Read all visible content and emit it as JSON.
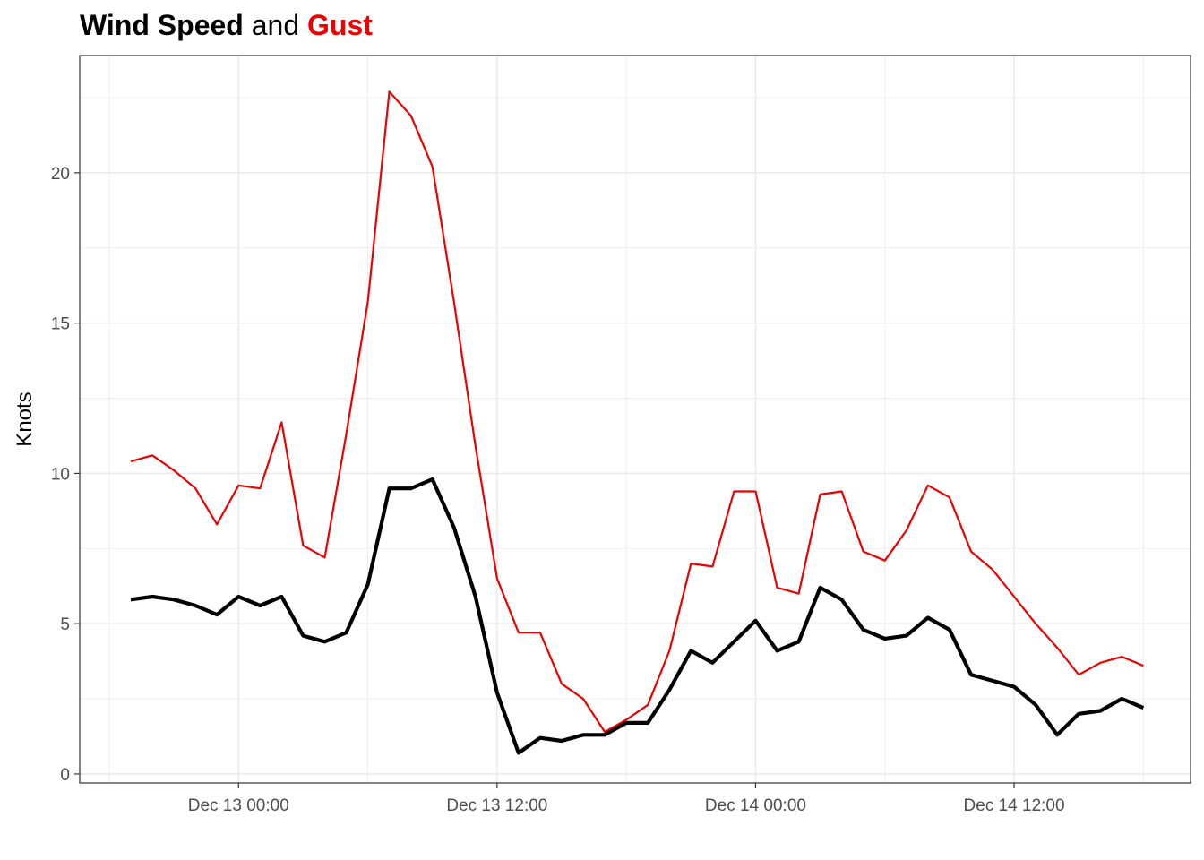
{
  "title": {
    "part1": "Wind Speed",
    "part2": " and ",
    "part3": "Gust",
    "part3_color": "#ee0000"
  },
  "chart_data": {
    "type": "line",
    "title": "Wind Speed and Gust",
    "xlabel": "",
    "ylabel": "Knots",
    "x_start": "2024-12-12 19:00",
    "x_step_hours": 1,
    "x_tick_labels": [
      "Dec 13 00:00",
      "Dec 13 12:00",
      "Dec 14 00:00",
      "Dec 14 12:00"
    ],
    "y_ticks": [
      0,
      5,
      10,
      15,
      20
    ],
    "ylim": [
      -0.3,
      23.9
    ],
    "grid": true,
    "legend": "none",
    "series": [
      {
        "name": "Gust",
        "color": "#ee0000",
        "values": [
          10.4,
          10.6,
          10.1,
          9.5,
          8.3,
          9.6,
          9.5,
          11.7,
          7.6,
          7.2,
          11.3,
          15.7,
          22.7,
          21.9,
          20.2,
          15.7,
          10.9,
          6.5,
          4.7,
          4.7,
          3.0,
          2.5,
          1.4,
          1.8,
          2.3,
          4.1,
          7.0,
          6.9,
          9.4,
          9.4,
          6.2,
          6.0,
          9.3,
          9.4,
          7.4,
          7.1,
          8.1,
          9.6,
          9.2,
          7.4,
          6.8,
          5.9,
          5.0,
          4.2,
          3.3,
          3.7,
          3.9,
          3.6
        ]
      },
      {
        "name": "Wind Speed",
        "color": "#000000",
        "values": [
          5.8,
          5.9,
          5.8,
          5.6,
          5.3,
          5.9,
          5.6,
          5.9,
          4.6,
          4.4,
          4.7,
          6.3,
          9.5,
          9.5,
          9.8,
          8.2,
          5.9,
          2.7,
          0.7,
          1.2,
          1.1,
          1.3,
          1.3,
          1.7,
          1.7,
          2.8,
          4.1,
          3.7,
          4.4,
          5.1,
          4.1,
          4.4,
          6.2,
          5.8,
          4.8,
          4.5,
          4.6,
          5.2,
          4.8,
          3.3,
          3.1,
          2.9,
          2.3,
          1.3,
          2.0,
          2.1,
          2.5,
          2.2
        ]
      }
    ]
  }
}
